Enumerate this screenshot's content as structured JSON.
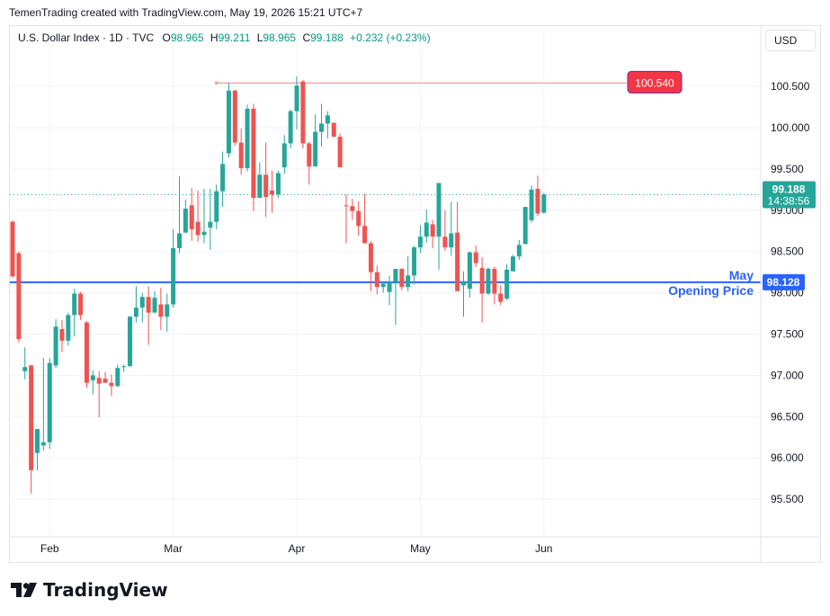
{
  "header": {
    "text": "TemenTrading created with TradingView.com, May 19, 2026 15:21 UTC+7"
  },
  "legend": {
    "symbol": "U.S. Dollar Index · 1D · TVC",
    "o_label": "O",
    "o_value": "98.965",
    "h_label": "H",
    "h_value": "99.211",
    "l_label": "L",
    "l_value": "98.965",
    "c_label": "C",
    "c_value": "99.188",
    "change": "+0.232 (+0.23%)"
  },
  "currency_button": "USD",
  "logo_text": "TradingView",
  "colors": {
    "up": "#26a69a",
    "down": "#ef5350",
    "level": "#2962ff",
    "resistance": "#f23645",
    "grid": "#f0f3fa"
  },
  "chart_data": {
    "type": "candlestick",
    "title": "U.S. Dollar Index",
    "interval": "1D",
    "y_ticks": [
      95.5,
      96.0,
      96.5,
      97.0,
      97.5,
      98.0,
      98.5,
      99.0,
      99.5,
      100.0,
      100.5
    ],
    "y_tick_labels": [
      "95.500",
      "96.000",
      "96.500",
      "97.000",
      "97.500",
      "98.000",
      "98.500",
      "99.000",
      "99.500",
      "100.000",
      "100.500"
    ],
    "x_labels": [
      {
        "label": "Feb",
        "index": 6
      },
      {
        "label": "Mar",
        "index": 26
      },
      {
        "label": "Apr",
        "index": 46
      },
      {
        "label": "May",
        "index": 66
      },
      {
        "label": "Jun",
        "index": 86
      }
    ],
    "current_price": {
      "value": 99.188,
      "label": "99.188",
      "countdown": "14:38:56"
    },
    "horizontal_levels": [
      {
        "name": "May Opening Price",
        "label_line1": "May",
        "label_line2": "Opening Price",
        "value": 98.128,
        "value_label": "98.128"
      },
      {
        "name": "resistance",
        "value": 100.54,
        "value_label": "100.540",
        "start_index": 33,
        "end_index": 79
      }
    ],
    "candles": [
      {
        "o": 98.86,
        "h": 98.88,
        "l": 98.18,
        "c": 98.2
      },
      {
        "o": 98.48,
        "h": 98.5,
        "l": 97.4,
        "c": 97.44
      },
      {
        "o": 97.05,
        "h": 97.34,
        "l": 96.95,
        "c": 97.1
      },
      {
        "o": 97.12,
        "h": 97.13,
        "l": 95.57,
        "c": 95.85
      },
      {
        "o": 96.06,
        "h": 96.33,
        "l": 95.85,
        "c": 96.35
      },
      {
        "o": 96.15,
        "h": 97.21,
        "l": 96.09,
        "c": 96.19
      },
      {
        "o": 96.19,
        "h": 97.21,
        "l": 96.11,
        "c": 97.15
      },
      {
        "o": 97.12,
        "h": 97.68,
        "l": 97.09,
        "c": 97.59
      },
      {
        "o": 97.56,
        "h": 97.67,
        "l": 97.28,
        "c": 97.42
      },
      {
        "o": 97.42,
        "h": 97.76,
        "l": 97.36,
        "c": 97.73
      },
      {
        "o": 97.73,
        "h": 98.05,
        "l": 97.47,
        "c": 97.99
      },
      {
        "o": 97.99,
        "h": 98.01,
        "l": 97.67,
        "c": 97.73
      },
      {
        "o": 97.64,
        "h": 97.66,
        "l": 96.85,
        "c": 96.91
      },
      {
        "o": 96.94,
        "h": 97.06,
        "l": 96.77,
        "c": 97.0
      },
      {
        "o": 96.97,
        "h": 97.05,
        "l": 96.49,
        "c": 96.9
      },
      {
        "o": 96.96,
        "h": 97.04,
        "l": 96.91,
        "c": 96.91
      },
      {
        "o": 96.91,
        "h": 97.01,
        "l": 96.75,
        "c": 96.87
      },
      {
        "o": 96.87,
        "h": 97.13,
        "l": 96.86,
        "c": 97.09
      },
      {
        "o": 97.11,
        "h": 97.13,
        "l": 97.04,
        "c": 97.11
      },
      {
        "o": 97.11,
        "h": 97.72,
        "l": 97.11,
        "c": 97.71
      },
      {
        "o": 97.71,
        "h": 98.08,
        "l": 97.64,
        "c": 97.82
      },
      {
        "o": 97.82,
        "h": 98.0,
        "l": 97.64,
        "c": 97.95
      },
      {
        "o": 97.95,
        "h": 98.08,
        "l": 97.37,
        "c": 97.76
      },
      {
        "o": 97.76,
        "h": 98.02,
        "l": 97.76,
        "c": 97.94
      },
      {
        "o": 97.86,
        "h": 98.06,
        "l": 97.55,
        "c": 97.71
      },
      {
        "o": 97.71,
        "h": 97.99,
        "l": 97.53,
        "c": 97.86
      },
      {
        "o": 97.86,
        "h": 98.77,
        "l": 97.82,
        "c": 98.54
      },
      {
        "o": 98.54,
        "h": 99.41,
        "l": 98.48,
        "c": 98.72
      },
      {
        "o": 98.73,
        "h": 99.13,
        "l": 98.72,
        "c": 99.02
      },
      {
        "o": 99.06,
        "h": 99.27,
        "l": 98.63,
        "c": 98.77
      },
      {
        "o": 98.86,
        "h": 99.24,
        "l": 98.62,
        "c": 98.7
      },
      {
        "o": 98.7,
        "h": 99.26,
        "l": 98.6,
        "c": 98.74
      },
      {
        "o": 98.79,
        "h": 99.26,
        "l": 98.52,
        "c": 98.86
      },
      {
        "o": 98.86,
        "h": 99.31,
        "l": 98.77,
        "c": 99.23
      },
      {
        "o": 99.23,
        "h": 99.71,
        "l": 99.04,
        "c": 99.56
      },
      {
        "o": 99.69,
        "h": 100.54,
        "l": 99.64,
        "c": 100.45
      },
      {
        "o": 100.45,
        "h": 100.46,
        "l": 99.78,
        "c": 99.82
      },
      {
        "o": 99.82,
        "h": 99.99,
        "l": 99.43,
        "c": 99.51
      },
      {
        "o": 99.51,
        "h": 100.28,
        "l": 99.47,
        "c": 100.23
      },
      {
        "o": 100.23,
        "h": 100.29,
        "l": 98.99,
        "c": 99.15
      },
      {
        "o": 99.15,
        "h": 99.58,
        "l": 99.15,
        "c": 99.43
      },
      {
        "o": 99.43,
        "h": 99.82,
        "l": 98.92,
        "c": 99.16
      },
      {
        "o": 99.24,
        "h": 99.48,
        "l": 98.97,
        "c": 99.19
      },
      {
        "o": 99.19,
        "h": 99.48,
        "l": 99.15,
        "c": 99.45
      },
      {
        "o": 99.52,
        "h": 99.91,
        "l": 99.44,
        "c": 99.81
      },
      {
        "o": 99.81,
        "h": 100.22,
        "l": 99.75,
        "c": 100.2
      },
      {
        "o": 100.2,
        "h": 100.62,
        "l": 99.98,
        "c": 100.51
      },
      {
        "o": 100.56,
        "h": 100.58,
        "l": 99.75,
        "c": 99.81
      },
      {
        "o": 99.81,
        "h": 99.83,
        "l": 99.31,
        "c": 99.53
      },
      {
        "o": 99.53,
        "h": 100.16,
        "l": 99.53,
        "c": 99.95
      },
      {
        "o": 99.95,
        "h": 100.29,
        "l": 99.77,
        "c": 100.05
      },
      {
        "o": 100.05,
        "h": 100.2,
        "l": 99.87,
        "c": 100.15
      },
      {
        "o": 100.06,
        "h": 100.06,
        "l": 99.89,
        "c": 99.89
      },
      {
        "o": 99.89,
        "h": 99.93,
        "l": 99.52,
        "c": 99.52
      },
      {
        "o": 99.06,
        "h": 99.19,
        "l": 98.6,
        "c": 99.05
      },
      {
        "o": 99.05,
        "h": 99.14,
        "l": 98.88,
        "c": 98.99
      },
      {
        "o": 98.99,
        "h": 99.11,
        "l": 98.69,
        "c": 98.81
      },
      {
        "o": 98.81,
        "h": 99.2,
        "l": 98.6,
        "c": 98.6
      },
      {
        "o": 98.6,
        "h": 98.63,
        "l": 98.02,
        "c": 98.25
      },
      {
        "o": 98.25,
        "h": 98.33,
        "l": 97.98,
        "c": 98.07
      },
      {
        "o": 98.07,
        "h": 98.14,
        "l": 98.0,
        "c": 98.11
      },
      {
        "o": 98.01,
        "h": 98.21,
        "l": 97.85,
        "c": 98.13
      },
      {
        "o": 98.13,
        "h": 98.25,
        "l": 97.61,
        "c": 98.29
      },
      {
        "o": 98.29,
        "h": 98.3,
        "l": 98.03,
        "c": 98.07
      },
      {
        "o": 98.07,
        "h": 98.44,
        "l": 98.02,
        "c": 98.21
      },
      {
        "o": 98.21,
        "h": 98.57,
        "l": 98.1,
        "c": 98.55
      },
      {
        "o": 98.55,
        "h": 98.82,
        "l": 98.48,
        "c": 98.68
      },
      {
        "o": 98.68,
        "h": 99.01,
        "l": 98.61,
        "c": 98.85
      },
      {
        "o": 98.83,
        "h": 98.88,
        "l": 98.54,
        "c": 98.68
      },
      {
        "o": 98.68,
        "h": 99.33,
        "l": 98.28,
        "c": 99.33
      },
      {
        "o": 98.68,
        "h": 99.0,
        "l": 98.51,
        "c": 98.55
      },
      {
        "o": 98.55,
        "h": 99.1,
        "l": 98.45,
        "c": 98.72
      },
      {
        "o": 98.73,
        "h": 99.1,
        "l": 98.03,
        "c": 98.02
      },
      {
        "o": 98.09,
        "h": 98.26,
        "l": 97.71,
        "c": 98.14
      },
      {
        "o": 98.05,
        "h": 98.5,
        "l": 97.94,
        "c": 98.49
      },
      {
        "o": 98.49,
        "h": 98.57,
        "l": 98.31,
        "c": 98.36
      },
      {
        "o": 98.3,
        "h": 98.43,
        "l": 97.64,
        "c": 97.99
      },
      {
        "o": 97.99,
        "h": 98.31,
        "l": 97.97,
        "c": 98.29
      },
      {
        "o": 98.29,
        "h": 98.32,
        "l": 97.86,
        "c": 97.99
      },
      {
        "o": 97.99,
        "h": 98.09,
        "l": 97.85,
        "c": 97.89
      },
      {
        "o": 97.93,
        "h": 98.35,
        "l": 97.91,
        "c": 98.28
      },
      {
        "o": 98.26,
        "h": 98.46,
        "l": 98.26,
        "c": 98.44
      },
      {
        "o": 98.44,
        "h": 98.64,
        "l": 98.4,
        "c": 98.58
      },
      {
        "o": 98.59,
        "h": 99.04,
        "l": 98.59,
        "c": 99.04
      },
      {
        "o": 98.88,
        "h": 99.3,
        "l": 98.85,
        "c": 99.25
      },
      {
        "o": 99.26,
        "h": 99.42,
        "l": 98.93,
        "c": 98.96
      },
      {
        "o": 98.97,
        "h": 99.21,
        "l": 98.96,
        "c": 99.19
      }
    ]
  }
}
